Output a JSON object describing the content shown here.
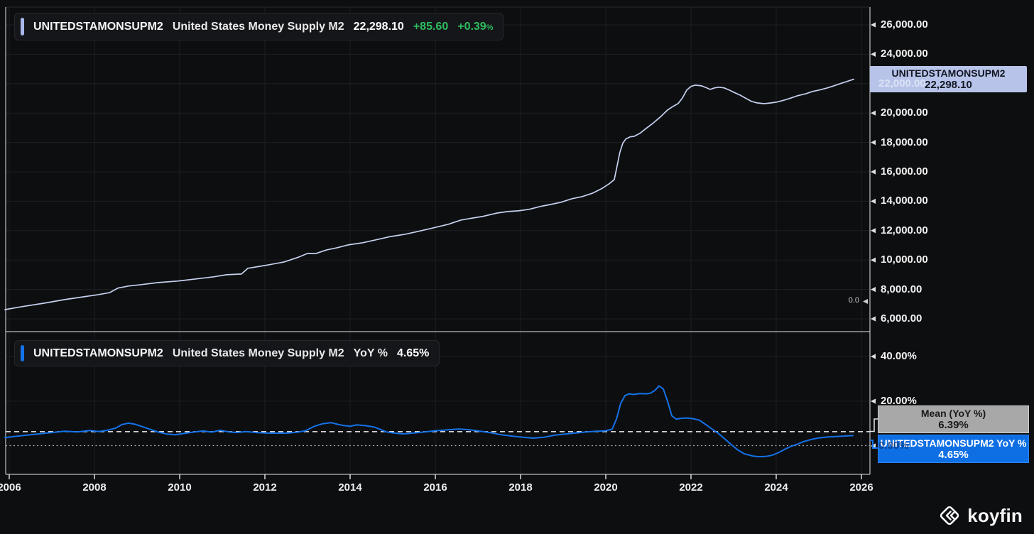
{
  "top_legend": {
    "symbol": "UNITEDSTAMONSUPM2",
    "name": "United States Money Supply M2",
    "value": "22,298.10",
    "change": "+85.60",
    "change_pct": "+0.39",
    "pct_sign": "%",
    "change_color": "#2ebd5e",
    "accent_color": "#a9b8ec"
  },
  "bottom_legend": {
    "symbol": "UNITEDSTAMONSUPM2",
    "name": "United States Money Supply M2",
    "metric": "YoY %",
    "value": "4.65%",
    "accent_color": "#1472e8"
  },
  "right_labels": {
    "security_box": {
      "line1": "UNITEDSTAMONSUPM2",
      "line2": "22,298.10"
    },
    "mean_box": {
      "line1": "Mean (YoY %)",
      "line2": "6.39%"
    },
    "yoy_box": {
      "line1": "UNITEDSTAMONSUPM2 YoY %",
      "line2": "4.65%"
    },
    "ghost_top": "22,000.00",
    "ghost_bottom": "0.00%",
    "zero_marker": "0.0"
  },
  "watermark": {
    "text": "koyfin"
  },
  "colors": {
    "top_line": "#c6d1f0",
    "bottom_line": "#1472e8",
    "grid": "#1e1f24",
    "frame": "#e8e8e8",
    "mean_dash": "#f0f0f0",
    "zero_dot": "#a9a9ae",
    "green": "#2ebd5e"
  },
  "chart_data": [
    {
      "type": "line",
      "title": "United States Money Supply M2",
      "pane": "top",
      "xlabel": "",
      "ylabel": "",
      "x_tick_years": [
        2006,
        2008,
        2010,
        2012,
        2014,
        2016,
        2018,
        2020,
        2022,
        2024,
        2026
      ],
      "x_tick_labels": [
        "2006",
        "2008",
        "2010",
        "2012",
        "2014",
        "2016",
        "2018",
        "2020",
        "2022",
        "2024",
        "2026"
      ],
      "y_ticks": [
        26000,
        24000,
        22000,
        20000,
        18000,
        16000,
        14000,
        12000,
        10000,
        8000,
        6000
      ],
      "y_tick_labels": [
        "26,000.00",
        "24,000.00",
        "22,000.00",
        "20,000.00",
        "18,000.00",
        "16,000.00",
        "14,000.00",
        "12,000.00",
        "10,000.00",
        "8,000.00",
        "6,000.00"
      ],
      "ylim": [
        5200,
        27200
      ],
      "xlim": [
        2005.82,
        2026.2
      ],
      "grid": true,
      "legend_position": "none",
      "last_value": 22298.1,
      "series": [
        {
          "name": "UNITEDSTAMONSUPM2",
          "points": [
            [
              2005.9,
              6630
            ],
            [
              2006.3,
              6830
            ],
            [
              2006.8,
              7060
            ],
            [
              2007.3,
              7310
            ],
            [
              2007.8,
              7520
            ],
            [
              2008.1,
              7650
            ],
            [
              2008.35,
              7780
            ],
            [
              2008.55,
              8090
            ],
            [
              2008.8,
              8230
            ],
            [
              2009.1,
              8330
            ],
            [
              2009.5,
              8470
            ],
            [
              2009.95,
              8570
            ],
            [
              2010.4,
              8720
            ],
            [
              2010.8,
              8860
            ],
            [
              2011.1,
              9000
            ],
            [
              2011.45,
              9050
            ],
            [
              2011.6,
              9440
            ],
            [
              2011.9,
              9580
            ],
            [
              2012.1,
              9680
            ],
            [
              2012.45,
              9870
            ],
            [
              2012.8,
              10210
            ],
            [
              2013.0,
              10450
            ],
            [
              2013.2,
              10450
            ],
            [
              2013.45,
              10690
            ],
            [
              2013.7,
              10840
            ],
            [
              2013.95,
              11030
            ],
            [
              2014.3,
              11180
            ],
            [
              2014.6,
              11370
            ],
            [
              2014.95,
              11600
            ],
            [
              2015.3,
              11760
            ],
            [
              2015.6,
              11950
            ],
            [
              2015.95,
              12190
            ],
            [
              2016.3,
              12430
            ],
            [
              2016.6,
              12720
            ],
            [
              2016.8,
              12820
            ],
            [
              2017.1,
              12960
            ],
            [
              2017.45,
              13200
            ],
            [
              2017.7,
              13300
            ],
            [
              2017.95,
              13350
            ],
            [
              2018.2,
              13450
            ],
            [
              2018.45,
              13640
            ],
            [
              2018.7,
              13780
            ],
            [
              2018.95,
              13930
            ],
            [
              2019.2,
              14170
            ],
            [
              2019.45,
              14320
            ],
            [
              2019.7,
              14560
            ],
            [
              2019.9,
              14850
            ],
            [
              2020.08,
              15190
            ],
            [
              2020.2,
              15480
            ],
            [
              2020.28,
              16600
            ],
            [
              2020.33,
              17320
            ],
            [
              2020.4,
              17950
            ],
            [
              2020.47,
              18230
            ],
            [
              2020.57,
              18380
            ],
            [
              2020.67,
              18420
            ],
            [
              2020.8,
              18620
            ],
            [
              2020.95,
              18960
            ],
            [
              2021.1,
              19290
            ],
            [
              2021.28,
              19730
            ],
            [
              2021.45,
              20210
            ],
            [
              2021.55,
              20400
            ],
            [
              2021.7,
              20650
            ],
            [
              2021.8,
              21030
            ],
            [
              2021.9,
              21560
            ],
            [
              2022.0,
              21810
            ],
            [
              2022.1,
              21900
            ],
            [
              2022.25,
              21850
            ],
            [
              2022.38,
              21700
            ],
            [
              2022.45,
              21610
            ],
            [
              2022.55,
              21710
            ],
            [
              2022.65,
              21760
            ],
            [
              2022.78,
              21710
            ],
            [
              2022.9,
              21560
            ],
            [
              2023.0,
              21420
            ],
            [
              2023.15,
              21220
            ],
            [
              2023.3,
              20980
            ],
            [
              2023.42,
              20790
            ],
            [
              2023.55,
              20690
            ],
            [
              2023.72,
              20640
            ],
            [
              2023.88,
              20690
            ],
            [
              2024.0,
              20740
            ],
            [
              2024.2,
              20890
            ],
            [
              2024.35,
              21030
            ],
            [
              2024.5,
              21180
            ],
            [
              2024.7,
              21320
            ],
            [
              2024.85,
              21470
            ],
            [
              2025.0,
              21560
            ],
            [
              2025.2,
              21710
            ],
            [
              2025.35,
              21850
            ],
            [
              2025.5,
              22000
            ],
            [
              2025.65,
              22140
            ],
            [
              2025.82,
              22298
            ]
          ]
        }
      ]
    },
    {
      "type": "line",
      "title": "United States Money Supply M2 YoY %",
      "pane": "bottom",
      "xlabel": "",
      "ylabel": "",
      "y_ticks": [
        40,
        20,
        0
      ],
      "y_tick_labels": [
        "40.00%",
        "20.00%",
        "0.00%"
      ],
      "ylim": [
        -8,
        48
      ],
      "grid": true,
      "legend_position": "none",
      "mean_line": {
        "label": "Mean (YoY %)",
        "value": 6.39,
        "style": "dashed"
      },
      "zero_line": {
        "value": 0,
        "style": "dotted"
      },
      "last_value": 4.65,
      "series": [
        {
          "name": "UNITEDSTAMONSUPM2 YoY %",
          "points": [
            [
              2005.9,
              3.7
            ],
            [
              2006.2,
              4.4
            ],
            [
              2006.6,
              5.2
            ],
            [
              2007.0,
              6.0
            ],
            [
              2007.3,
              6.6
            ],
            [
              2007.6,
              6.3
            ],
            [
              2007.9,
              6.9
            ],
            [
              2008.1,
              6.4
            ],
            [
              2008.3,
              7.0
            ],
            [
              2008.5,
              8.0
            ],
            [
              2008.65,
              9.6
            ],
            [
              2008.8,
              10.2
            ],
            [
              2008.95,
              9.7
            ],
            [
              2009.1,
              8.8
            ],
            [
              2009.3,
              7.5
            ],
            [
              2009.5,
              6.2
            ],
            [
              2009.7,
              5.3
            ],
            [
              2009.9,
              5.0
            ],
            [
              2010.1,
              5.6
            ],
            [
              2010.35,
              6.3
            ],
            [
              2010.55,
              6.7
            ],
            [
              2010.75,
              6.2
            ],
            [
              2010.95,
              7.0
            ],
            [
              2011.15,
              6.3
            ],
            [
              2011.35,
              6.0
            ],
            [
              2011.55,
              6.4
            ],
            [
              2011.8,
              6.0
            ],
            [
              2012.1,
              5.7
            ],
            [
              2012.5,
              5.7
            ],
            [
              2012.75,
              6.1
            ],
            [
              2012.95,
              6.8
            ],
            [
              2013.15,
              8.7
            ],
            [
              2013.35,
              9.9
            ],
            [
              2013.55,
              10.4
            ],
            [
              2013.7,
              9.7
            ],
            [
              2013.85,
              9.1
            ],
            [
              2014.0,
              8.8
            ],
            [
              2014.15,
              9.4
            ],
            [
              2014.35,
              9.1
            ],
            [
              2014.55,
              8.5
            ],
            [
              2014.7,
              7.5
            ],
            [
              2014.85,
              6.3
            ],
            [
              2015.05,
              5.7
            ],
            [
              2015.25,
              5.4
            ],
            [
              2015.5,
              5.8
            ],
            [
              2015.75,
              6.3
            ],
            [
              2016.0,
              6.8
            ],
            [
              2016.3,
              7.2
            ],
            [
              2016.55,
              7.6
            ],
            [
              2016.8,
              7.2
            ],
            [
              2017.05,
              6.6
            ],
            [
              2017.3,
              5.9
            ],
            [
              2017.55,
              5.0
            ],
            [
              2017.8,
              4.4
            ],
            [
              2018.05,
              3.9
            ],
            [
              2018.3,
              3.5
            ],
            [
              2018.55,
              3.9
            ],
            [
              2018.8,
              4.8
            ],
            [
              2019.05,
              5.3
            ],
            [
              2019.3,
              5.8
            ],
            [
              2019.55,
              6.3
            ],
            [
              2019.8,
              6.6
            ],
            [
              2020.0,
              6.8
            ],
            [
              2020.15,
              7.5
            ],
            [
              2020.25,
              12.0
            ],
            [
              2020.35,
              19.0
            ],
            [
              2020.45,
              22.5
            ],
            [
              2020.55,
              23.3
            ],
            [
              2020.65,
              23.0
            ],
            [
              2020.8,
              23.4
            ],
            [
              2020.95,
              23.3
            ],
            [
              2021.05,
              23.6
            ],
            [
              2021.15,
              24.8
            ],
            [
              2021.25,
              26.8
            ],
            [
              2021.35,
              25.5
            ],
            [
              2021.45,
              20.0
            ],
            [
              2021.55,
              13.5
            ],
            [
              2021.65,
              12.0
            ],
            [
              2021.75,
              12.3
            ],
            [
              2021.9,
              12.5
            ],
            [
              2022.05,
              12.2
            ],
            [
              2022.2,
              11.5
            ],
            [
              2022.35,
              9.5
            ],
            [
              2022.5,
              7.5
            ],
            [
              2022.65,
              5.5
            ],
            [
              2022.8,
              3.0
            ],
            [
              2022.95,
              0.5
            ],
            [
              2023.1,
              -1.8
            ],
            [
              2023.25,
              -3.5
            ],
            [
              2023.45,
              -4.5
            ],
            [
              2023.6,
              -4.8
            ],
            [
              2023.75,
              -4.7
            ],
            [
              2023.9,
              -4.2
            ],
            [
              2024.05,
              -3.0
            ],
            [
              2024.2,
              -1.5
            ],
            [
              2024.35,
              -0.2
            ],
            [
              2024.5,
              0.8
            ],
            [
              2024.65,
              2.0
            ],
            [
              2024.85,
              3.0
            ],
            [
              2025.0,
              3.6
            ],
            [
              2025.2,
              4.0
            ],
            [
              2025.4,
              4.2
            ],
            [
              2025.6,
              4.4
            ],
            [
              2025.8,
              4.65
            ]
          ]
        }
      ]
    }
  ]
}
